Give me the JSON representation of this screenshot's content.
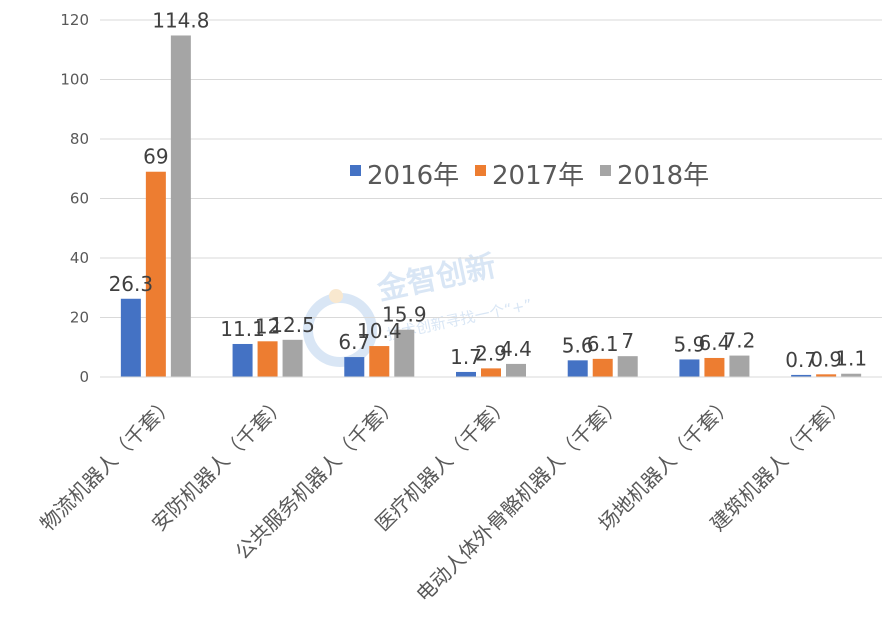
{
  "chart_data": {
    "type": "bar",
    "title": "",
    "xlabel": "",
    "ylabel": "",
    "ylim": [
      0,
      120
    ],
    "yticks": [
      0,
      20,
      40,
      60,
      80,
      100,
      120
    ],
    "grid": true,
    "legend_position": "upper-right-inside",
    "categories": [
      "物流机器人（千套）",
      "安防机器人（千套）",
      "公共服务机器人（千套）",
      "医疗机器人（千套）",
      "电动人体外骨骼机器人（千套）",
      "场地机器人（千套）",
      "建筑机器人（千套）"
    ],
    "series": [
      {
        "name": "2016年",
        "color": "#4472C4",
        "values": [
          26.3,
          11.1,
          6.7,
          1.7,
          5.6,
          5.9,
          0.7
        ],
        "labels": [
          "26.3",
          "11.1",
          "6.7",
          "1.7",
          "5.6",
          "5.9",
          "0.7"
        ]
      },
      {
        "name": "2017年",
        "color": "#ED7D31",
        "values": [
          69,
          12,
          10.4,
          2.9,
          6.1,
          6.4,
          0.9
        ],
        "labels": [
          "69",
          "12",
          "10.4",
          "2.9",
          "6.1",
          "6.4",
          "0.9"
        ]
      },
      {
        "name": "2018年",
        "color": "#A5A5A5",
        "values": [
          114.8,
          12.5,
          15.9,
          4.4,
          7,
          7.2,
          1.1
        ],
        "labels": [
          "114.8",
          "12.5",
          "15.9",
          "4.4",
          "7",
          "7.2",
          "1.1"
        ]
      }
    ]
  },
  "watermark": {
    "text_main": "金智创新",
    "text_sub": "技术创新寻找一个“+”"
  }
}
